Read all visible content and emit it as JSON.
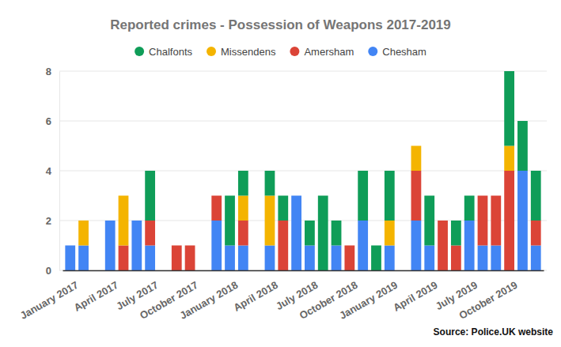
{
  "chart_data": {
    "type": "bar",
    "title": "Reported crimes - Possession of Weapons 2017-2019",
    "annotations": [
      "Source: Police.UK website"
    ],
    "categories": [
      "January 2017",
      null,
      null,
      "April 2017",
      null,
      null,
      "July 2017",
      null,
      null,
      "October 2017",
      null,
      null,
      "January 2018",
      null,
      null,
      "April 2018",
      null,
      null,
      "July 2018",
      null,
      null,
      "October 2018",
      null,
      null,
      "January 2019",
      null,
      null,
      "April 2019",
      null,
      null,
      "July 2019",
      null,
      null,
      "October 2019",
      null,
      null
    ],
    "series": [
      {
        "name": "Chalfonts",
        "color": "#0f9d58",
        "values": [
          0,
          0,
          0,
          0,
          0,
          0,
          2,
          0,
          0,
          0,
          0,
          0,
          2,
          1,
          0,
          1,
          1,
          0,
          1,
          3,
          1,
          0,
          2,
          1,
          2,
          0,
          0,
          2,
          0,
          1,
          1,
          0,
          0,
          3,
          2,
          2
        ]
      },
      {
        "name": "Missendens",
        "color": "#f4b400",
        "values": [
          0,
          1,
          0,
          0,
          2,
          0,
          0,
          0,
          0,
          0,
          0,
          0,
          0,
          1,
          0,
          2,
          0,
          0,
          0,
          0,
          0,
          0,
          0,
          0,
          1,
          0,
          1,
          0,
          0,
          0,
          0,
          0,
          0,
          1,
          0,
          0
        ]
      },
      {
        "name": "Amersham",
        "color": "#db4437",
        "values": [
          0,
          0,
          0,
          0,
          1,
          0,
          1,
          0,
          1,
          1,
          0,
          1,
          0,
          1,
          0,
          0,
          2,
          0,
          0,
          0,
          0,
          1,
          0,
          0,
          0,
          0,
          2,
          0,
          2,
          1,
          0,
          2,
          2,
          4,
          0,
          1
        ]
      },
      {
        "name": "Chesham",
        "color": "#4285f4",
        "values": [
          1,
          1,
          0,
          2,
          0,
          2,
          1,
          0,
          0,
          0,
          0,
          2,
          1,
          1,
          0,
          1,
          0,
          3,
          1,
          0,
          1,
          0,
          2,
          0,
          1,
          0,
          2,
          1,
          0,
          0,
          2,
          1,
          1,
          0,
          4,
          1
        ]
      }
    ],
    "ylim": [
      0,
      8
    ],
    "yticks": [
      0,
      2,
      4,
      6,
      8
    ],
    "grid": true,
    "stacked": true,
    "legend": "top"
  }
}
